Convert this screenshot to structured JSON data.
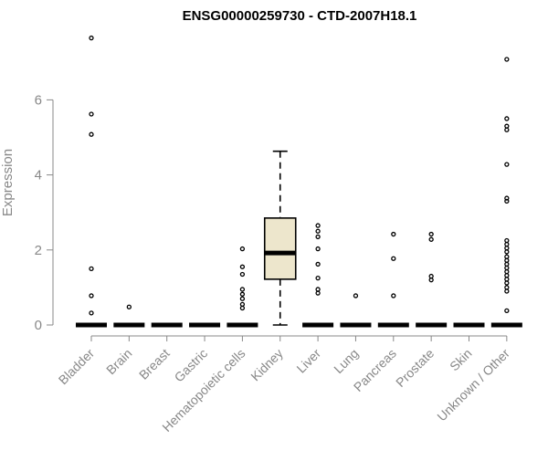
{
  "chart_data": {
    "type": "box",
    "title": "ENSG00000259730 - CTD-2007H18.1",
    "xlabel": "",
    "ylabel": "Expression",
    "ylim": [
      0,
      7.9
    ],
    "yticks": [
      0,
      2,
      4,
      6
    ],
    "grid": false,
    "colors": {
      "box_fill": "#ede6cc",
      "outline": "#000000",
      "axis": "#888888",
      "text": "#888888"
    },
    "categories": [
      "Bladder",
      "Brain",
      "Breast",
      "Gastric",
      "Hematopoietic cells",
      "Kidney",
      "Liver",
      "Lung",
      "Pancreas",
      "Prostate",
      "Skin",
      "Unknown / Other"
    ],
    "boxes": [
      {
        "category": "Bladder",
        "q1": 0,
        "median": 0,
        "q3": 0,
        "whisker_low": 0,
        "whisker_high": 0,
        "outliers": [
          0.32,
          0.78,
          1.5,
          5.08,
          5.62,
          7.65
        ]
      },
      {
        "category": "Brain",
        "q1": 0,
        "median": 0,
        "q3": 0,
        "whisker_low": 0,
        "whisker_high": 0,
        "outliers": [
          0.48
        ]
      },
      {
        "category": "Breast",
        "q1": 0,
        "median": 0,
        "q3": 0,
        "whisker_low": 0,
        "whisker_high": 0,
        "outliers": []
      },
      {
        "category": "Gastric",
        "q1": 0,
        "median": 0,
        "q3": 0,
        "whisker_low": 0,
        "whisker_high": 0,
        "outliers": []
      },
      {
        "category": "Hematopoietic cells",
        "q1": 0,
        "median": 0,
        "q3": 0,
        "whisker_low": 0,
        "whisker_high": 0,
        "outliers": [
          0.45,
          0.55,
          0.7,
          0.82,
          0.95,
          1.35,
          1.55,
          2.03
        ]
      },
      {
        "category": "Kidney",
        "q1": 1.22,
        "median": 1.92,
        "q3": 2.85,
        "whisker_low": 0.0,
        "whisker_high": 4.63,
        "outliers": []
      },
      {
        "category": "Liver",
        "q1": 0,
        "median": 0,
        "q3": 0,
        "whisker_low": 0,
        "whisker_high": 0,
        "outliers": [
          0.85,
          0.95,
          1.25,
          1.62,
          2.03,
          2.35,
          2.5,
          2.65
        ]
      },
      {
        "category": "Lung",
        "q1": 0,
        "median": 0,
        "q3": 0,
        "whisker_low": 0,
        "whisker_high": 0,
        "outliers": [
          0.78
        ]
      },
      {
        "category": "Pancreas",
        "q1": 0,
        "median": 0,
        "q3": 0,
        "whisker_low": 0,
        "whisker_high": 0,
        "outliers": [
          0.78,
          1.77,
          2.42
        ]
      },
      {
        "category": "Prostate",
        "q1": 0,
        "median": 0,
        "q3": 0,
        "whisker_low": 0,
        "whisker_high": 0,
        "outliers": [
          1.2,
          1.3,
          2.28,
          2.42
        ]
      },
      {
        "category": "Skin",
        "q1": 0,
        "median": 0,
        "q3": 0,
        "whisker_low": 0,
        "whisker_high": 0,
        "outliers": []
      },
      {
        "category": "Unknown / Other",
        "q1": 0,
        "median": 0,
        "q3": 0,
        "whisker_low": 0,
        "whisker_high": 0,
        "outliers": [
          0.38,
          0.9,
          1.0,
          1.12,
          1.22,
          1.32,
          1.42,
          1.52,
          1.62,
          1.72,
          1.82,
          1.95,
          2.05,
          2.15,
          2.25,
          3.3,
          3.38,
          4.28,
          5.2,
          5.3,
          5.5,
          7.08
        ]
      }
    ]
  }
}
